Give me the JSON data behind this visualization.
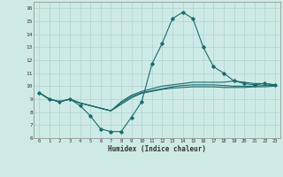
{
  "xlabel": "Humidex (Indice chaleur)",
  "background_color": "#ceeae7",
  "grid_color": "#aed4d0",
  "line_color": "#1a6b6b",
  "xlim": [
    -0.5,
    23.5
  ],
  "ylim": [
    6,
    16.5
  ],
  "xticks": [
    0,
    1,
    2,
    3,
    4,
    5,
    6,
    7,
    8,
    9,
    10,
    11,
    12,
    13,
    14,
    15,
    16,
    17,
    18,
    19,
    20,
    21,
    22,
    23
  ],
  "yticks": [
    6,
    7,
    8,
    9,
    10,
    11,
    12,
    13,
    14,
    15,
    16
  ],
  "line1_x": [
    0,
    1,
    2,
    3,
    4,
    5,
    6,
    7,
    8,
    9,
    10,
    11,
    12,
    13,
    14,
    15,
    16,
    17,
    18,
    19,
    20,
    21,
    22,
    23
  ],
  "line1_y": [
    9.5,
    9.0,
    8.8,
    9.0,
    8.5,
    7.7,
    6.7,
    6.5,
    6.5,
    7.6,
    8.8,
    11.7,
    13.3,
    15.2,
    15.7,
    15.2,
    13.0,
    11.5,
    11.0,
    10.4,
    10.2,
    10.1,
    10.2,
    10.1
  ],
  "line2_x": [
    0,
    1,
    2,
    3,
    4,
    5,
    6,
    7,
    8,
    9,
    10,
    11,
    12,
    13,
    14,
    15,
    16,
    17,
    18,
    19,
    20,
    21,
    22,
    23
  ],
  "line2_y": [
    9.5,
    9.0,
    8.8,
    9.0,
    8.7,
    8.5,
    8.3,
    8.1,
    8.8,
    9.3,
    9.6,
    9.8,
    10.0,
    10.1,
    10.2,
    10.3,
    10.3,
    10.3,
    10.3,
    10.4,
    10.3,
    10.2,
    10.2,
    10.1
  ],
  "line3_x": [
    0,
    1,
    2,
    3,
    4,
    5,
    6,
    7,
    8,
    9,
    10,
    11,
    12,
    13,
    14,
    15,
    16,
    17,
    18,
    19,
    20,
    21,
    22,
    23
  ],
  "line3_y": [
    9.5,
    9.0,
    8.8,
    9.0,
    8.7,
    8.5,
    8.3,
    8.1,
    8.7,
    9.2,
    9.5,
    9.65,
    9.8,
    9.95,
    10.05,
    10.1,
    10.1,
    10.1,
    10.05,
    10.0,
    10.0,
    10.0,
    10.05,
    10.05
  ],
  "line4_x": [
    0,
    1,
    2,
    3,
    4,
    5,
    6,
    7,
    8,
    9,
    10,
    11,
    12,
    13,
    14,
    15,
    16,
    17,
    18,
    19,
    20,
    21,
    22,
    23
  ],
  "line4_y": [
    9.5,
    9.0,
    8.8,
    9.0,
    8.7,
    8.5,
    8.3,
    8.1,
    8.6,
    9.1,
    9.45,
    9.6,
    9.75,
    9.85,
    9.9,
    9.95,
    9.95,
    9.95,
    9.9,
    9.9,
    9.9,
    9.95,
    9.95,
    10.0
  ]
}
